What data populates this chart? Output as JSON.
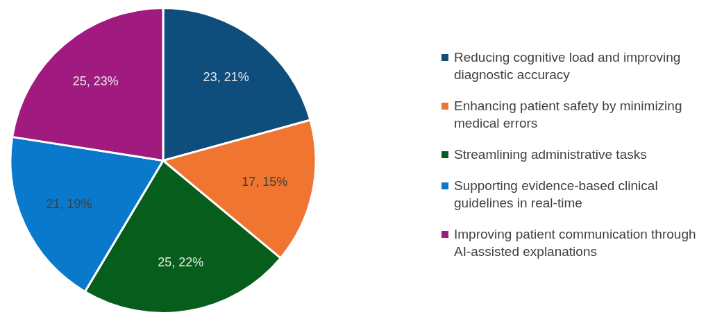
{
  "chart_data": {
    "type": "pie",
    "categories": [
      "Reducing cognitive load and improving diagnostic accuracy",
      "Enhancing patient safety by minimizing medical errors",
      "Streamlining administrative tasks",
      "Supporting evidence-based clinical guidelines in real-time",
      "Improving patient communication through AI-assisted explanations"
    ],
    "values": [
      23,
      17,
      25,
      21,
      25
    ],
    "colors": [
      "#0e4d7c",
      "#f07530",
      "#075e1c",
      "#0a79cc",
      "#a01a80"
    ],
    "value_labels": [
      "23, 21%",
      "17, 15%",
      "25, 22%",
      "21, 19%",
      "25, 23%"
    ],
    "legend": "right"
  }
}
